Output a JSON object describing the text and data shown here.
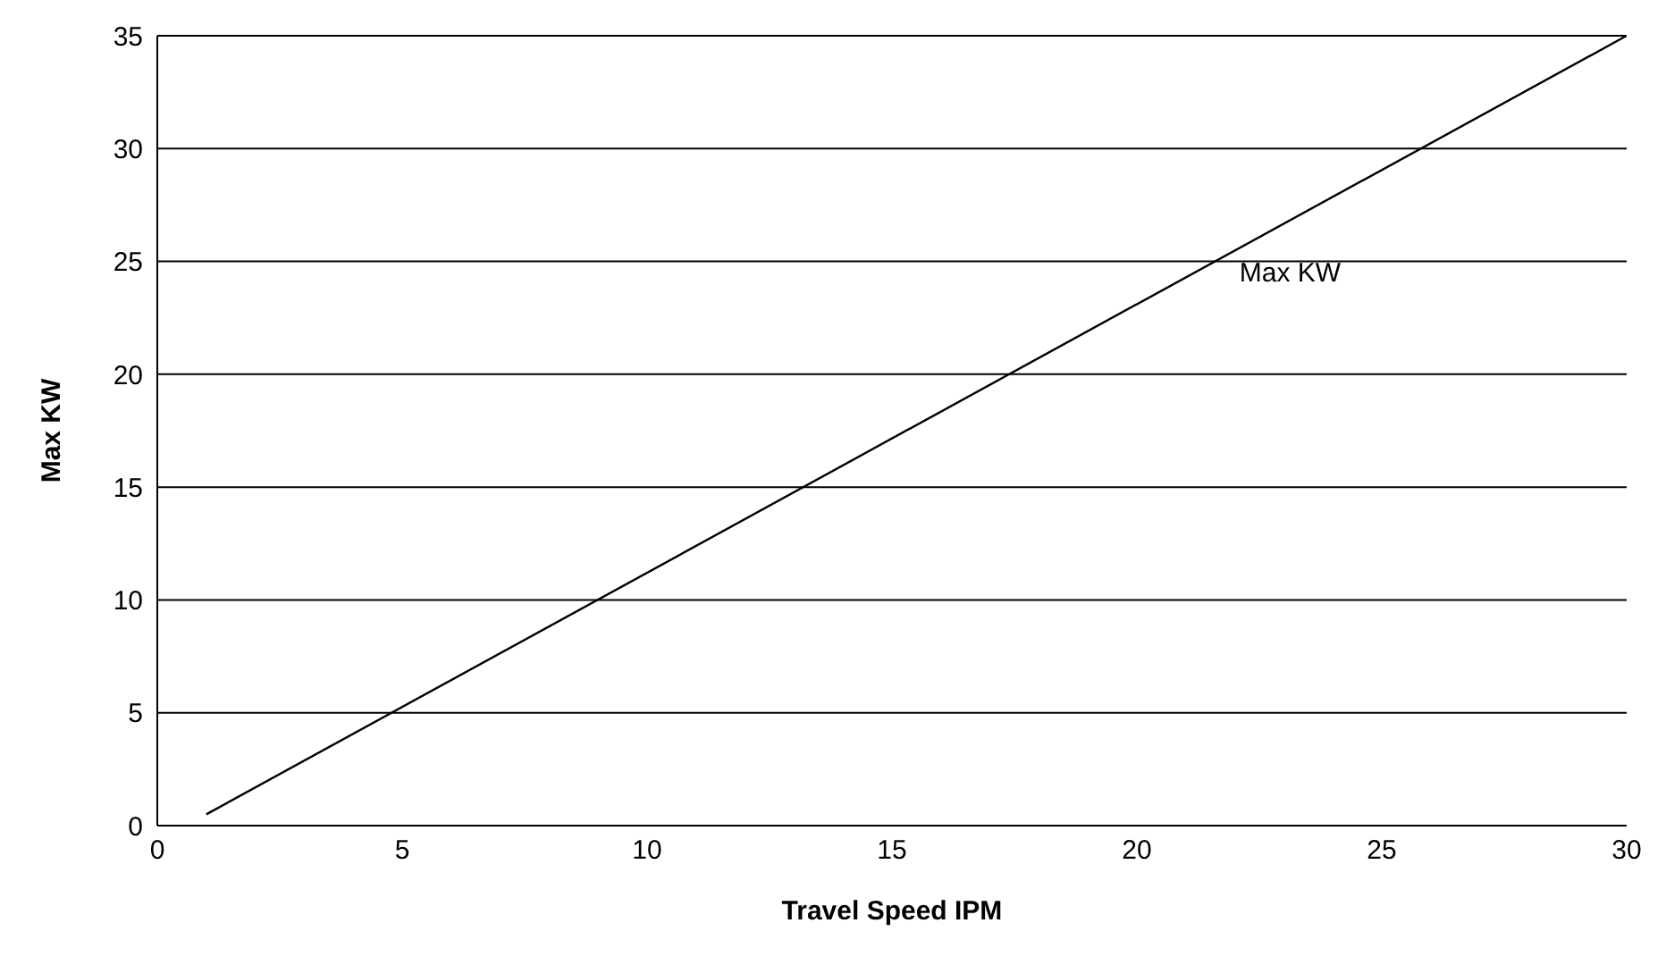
{
  "chart_data": {
    "type": "line",
    "xlabel": "Travel Speed IPM",
    "ylabel": "Max KW",
    "series": [
      {
        "name": "Max KW",
        "color": "#000000",
        "x": [
          1,
          30
        ],
        "values": [
          0.5,
          35
        ]
      }
    ],
    "xlim": [
      0,
      30
    ],
    "xticks": [
      0,
      5,
      10,
      15,
      20,
      25,
      30
    ],
    "ylim": [
      0,
      35
    ],
    "yticks": [
      0,
      5,
      10,
      15,
      20,
      25,
      30,
      35
    ],
    "grid": "y",
    "legend": false,
    "marker": "none",
    "line_style": "solid"
  }
}
